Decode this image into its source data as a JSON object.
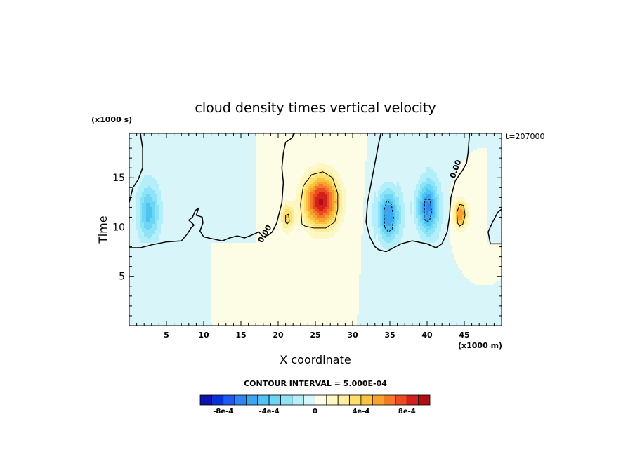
{
  "chart_data": {
    "type": "heatmap",
    "title": "cloud density times vertical velocity",
    "xlabel": "X coordinate",
    "ylabel": "Time",
    "x_unit_label": "(x1000 m)",
    "y_unit_label": "(x1000 s)",
    "time_label": "t=207000",
    "xlim": [
      0,
      50
    ],
    "ylim": [
      0,
      19.5
    ],
    "x_ticks": [
      5,
      10,
      15,
      20,
      25,
      30,
      35,
      40,
      45
    ],
    "y_ticks": [
      5,
      10,
      15
    ],
    "contour_interval": "CONTOUR INTERVAL = 5.000E-04",
    "contour_labels": [
      "0.00",
      "0.00"
    ],
    "colorbar": {
      "levels": [
        -0.001,
        -0.0009,
        -0.0008,
        -0.0007,
        -0.0006,
        -0.0005,
        -0.0004,
        -0.0003,
        -0.0002,
        -0.0001,
        0,
        0.0001,
        0.0002,
        0.0003,
        0.0004,
        0.0005,
        0.0006,
        0.0007,
        0.0008,
        0.0009,
        0.001
      ],
      "colors": [
        "#0a14aa",
        "#0a32d2",
        "#1e5af0",
        "#2e86f0",
        "#3aa6f0",
        "#4ec4f2",
        "#6cd6f4",
        "#8ee4f6",
        "#b4eef8",
        "#d8f6fa",
        "#fdfde6",
        "#fdf7c4",
        "#fdee9c",
        "#fde068",
        "#fcc43c",
        "#f8a030",
        "#f47828",
        "#ec4a22",
        "#d4201c",
        "#b00e14"
      ],
      "tick_labels": [
        "-8e-4",
        "-4e-4",
        "0",
        "4e-4",
        "8e-4"
      ],
      "tick_values": [
        -0.0008,
        -0.0004,
        0,
        0.0004,
        0.0008
      ]
    },
    "features": [
      {
        "kind": "updraft",
        "x": 25.8,
        "y": 12.6,
        "peak": 0.00092
      },
      {
        "kind": "updraft",
        "x": 21.2,
        "y": 11.0,
        "peak": 0.0004
      },
      {
        "kind": "updraft",
        "x": 44.5,
        "y": 11.3,
        "peak": 0.0006
      },
      {
        "kind": "downdraft",
        "x": 2.6,
        "y": 11.5,
        "peak": -0.0004
      },
      {
        "kind": "downdraft",
        "x": 34.8,
        "y": 11.2,
        "peak": -0.0006
      },
      {
        "kind": "downdraft",
        "x": 40.0,
        "y": 12.0,
        "peak": -0.0006
      }
    ],
    "zero_contours": [
      [
        [
          1.5,
          19.5
        ],
        [
          1.8,
          18.0
        ],
        [
          1.8,
          16.0
        ],
        [
          1.2,
          14.8
        ],
        [
          0.5,
          14.0
        ],
        [
          0.0,
          12.5
        ]
      ],
      [
        [
          0.0,
          7.9
        ],
        [
          1.5,
          7.9
        ],
        [
          3.0,
          8.2
        ],
        [
          5.0,
          8.5
        ],
        [
          7.0,
          8.6
        ],
        [
          7.8,
          9.3
        ],
        [
          8.3,
          9.9
        ],
        [
          8.7,
          10.2
        ],
        [
          8.0,
          10.7
        ],
        [
          8.5,
          11.0
        ],
        [
          8.9,
          11.7
        ],
        [
          9.3,
          11.9
        ],
        [
          9.0,
          11.2
        ],
        [
          9.8,
          11.0
        ],
        [
          9.9,
          10.4
        ],
        [
          9.5,
          9.6
        ],
        [
          10.0,
          9.0
        ],
        [
          11.2,
          8.8
        ],
        [
          12.5,
          8.6
        ],
        [
          13.5,
          8.9
        ],
        [
          14.5,
          9.1
        ],
        [
          15.5,
          8.9
        ],
        [
          16.5,
          9.2
        ],
        [
          17.4,
          9.5
        ],
        [
          18.0,
          9.0
        ],
        [
          18.7,
          9.2
        ],
        [
          19.2,
          9.5
        ],
        [
          19.8,
          10.4
        ],
        [
          20.5,
          12.5
        ],
        [
          20.7,
          14.5
        ],
        [
          20.5,
          16.0
        ],
        [
          20.7,
          17.5
        ],
        [
          21.0,
          18.6
        ],
        [
          21.8,
          19.0
        ],
        [
          22.2,
          19.5
        ]
      ],
      [
        [
          33.8,
          19.5
        ],
        [
          33.5,
          18.5
        ],
        [
          33.0,
          16.5
        ],
        [
          32.5,
          14.5
        ],
        [
          32.0,
          12.5
        ],
        [
          31.8,
          10.5
        ],
        [
          32.3,
          9.0
        ],
        [
          33.0,
          8.0
        ],
        [
          33.5,
          7.7
        ],
        [
          34.5,
          7.5
        ],
        [
          35.5,
          7.9
        ],
        [
          36.5,
          8.3
        ],
        [
          38.0,
          8.6
        ],
        [
          40.0,
          8.3
        ],
        [
          41.2,
          7.9
        ],
        [
          42.0,
          8.3
        ],
        [
          42.7,
          9.5
        ],
        [
          43.0,
          11.0
        ],
        [
          43.2,
          13.0
        ],
        [
          43.8,
          14.7
        ],
        [
          44.8,
          15.8
        ],
        [
          45.3,
          16.5
        ],
        [
          45.5,
          17.5
        ],
        [
          45.7,
          19.5
        ]
      ],
      [
        [
          50.0,
          8.3
        ],
        [
          48.5,
          8.3
        ],
        [
          48.2,
          9.5
        ],
        [
          48.8,
          10.5
        ],
        [
          49.5,
          11.5
        ],
        [
          50.0,
          11.8
        ]
      ]
    ],
    "solid_contours": [
      [
        [
          23.2,
          10.3
        ],
        [
          23.0,
          12.3
        ],
        [
          23.4,
          14.2
        ],
        [
          24.5,
          15.3
        ],
        [
          26.0,
          15.6
        ],
        [
          27.3,
          15.0
        ],
        [
          28.0,
          13.4
        ],
        [
          28.0,
          11.8
        ],
        [
          27.6,
          10.5
        ],
        [
          26.4,
          9.9
        ],
        [
          24.8,
          9.9
        ],
        [
          23.6,
          10.1
        ],
        [
          23.2,
          10.3
        ]
      ],
      [
        [
          44.1,
          10.4
        ],
        [
          44.0,
          11.5
        ],
        [
          44.4,
          12.3
        ],
        [
          44.9,
          12.2
        ],
        [
          45.1,
          11.2
        ],
        [
          44.8,
          10.3
        ],
        [
          44.4,
          10.1
        ],
        [
          44.1,
          10.4
        ]
      ],
      [
        [
          21.0,
          10.5
        ],
        [
          21.0,
          11.2
        ],
        [
          21.4,
          11.3
        ],
        [
          21.5,
          10.6
        ],
        [
          21.2,
          10.3
        ],
        [
          21.0,
          10.5
        ]
      ]
    ],
    "dashed_contours": [
      [
        [
          34.3,
          10.0
        ],
        [
          34.2,
          11.6
        ],
        [
          34.6,
          12.7
        ],
        [
          35.2,
          12.3
        ],
        [
          35.5,
          11.0
        ],
        [
          35.3,
          9.8
        ],
        [
          34.8,
          9.5
        ],
        [
          34.3,
          10.0
        ]
      ],
      [
        [
          39.6,
          11.0
        ],
        [
          39.7,
          12.8
        ],
        [
          40.4,
          12.8
        ],
        [
          40.6,
          11.5
        ],
        [
          40.3,
          10.6
        ],
        [
          39.8,
          10.6
        ],
        [
          39.6,
          11.0
        ]
      ]
    ]
  }
}
